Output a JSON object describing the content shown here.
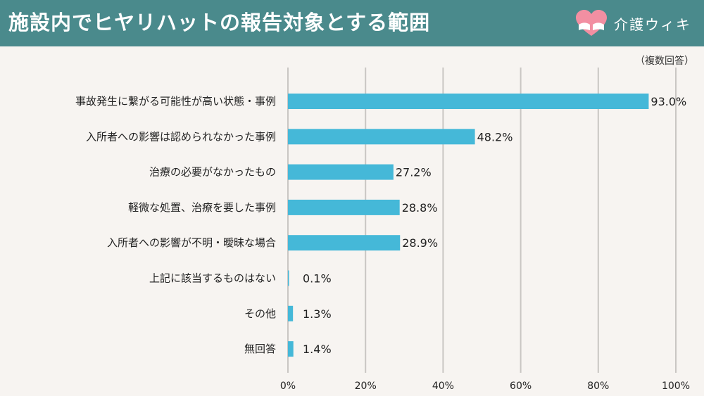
{
  "header": {
    "title": "施設内でヒヤリハットの報告対象とする範囲",
    "brand_name": "介護ウィキ",
    "brand_icon": "heart-hands-icon"
  },
  "note": "（複数回答）",
  "colors": {
    "header_bg": "#4a8a8c",
    "bar": "#45b8d8",
    "background": "#f7f4f1",
    "grid": "#c9c6c3",
    "logo_heart": "#f28fa2"
  },
  "chart_data": {
    "type": "bar",
    "orientation": "horizontal",
    "categories": [
      "事故発生に繋がる可能性が高い状態・事例",
      "入所者への影響は認められなかった事例",
      "治療の必要がなかったもの",
      "軽微な処置、治療を要した事例",
      "入所者への影響が不明・曖昧な場合",
      "上記に該当するものはない",
      "その他",
      "無回答"
    ],
    "values": [
      93.0,
      48.2,
      27.2,
      28.8,
      28.9,
      0.1,
      1.3,
      1.4
    ],
    "value_labels": [
      "93.0%",
      "48.2%",
      "27.2%",
      "28.8%",
      "28.9%",
      "0.1%",
      "1.3%",
      "1.4%"
    ],
    "xlim": [
      0,
      100
    ],
    "x_ticks": [
      "0%",
      "20%",
      "40%",
      "60%",
      "80%",
      "100%"
    ],
    "grid": true,
    "legend": "none"
  }
}
